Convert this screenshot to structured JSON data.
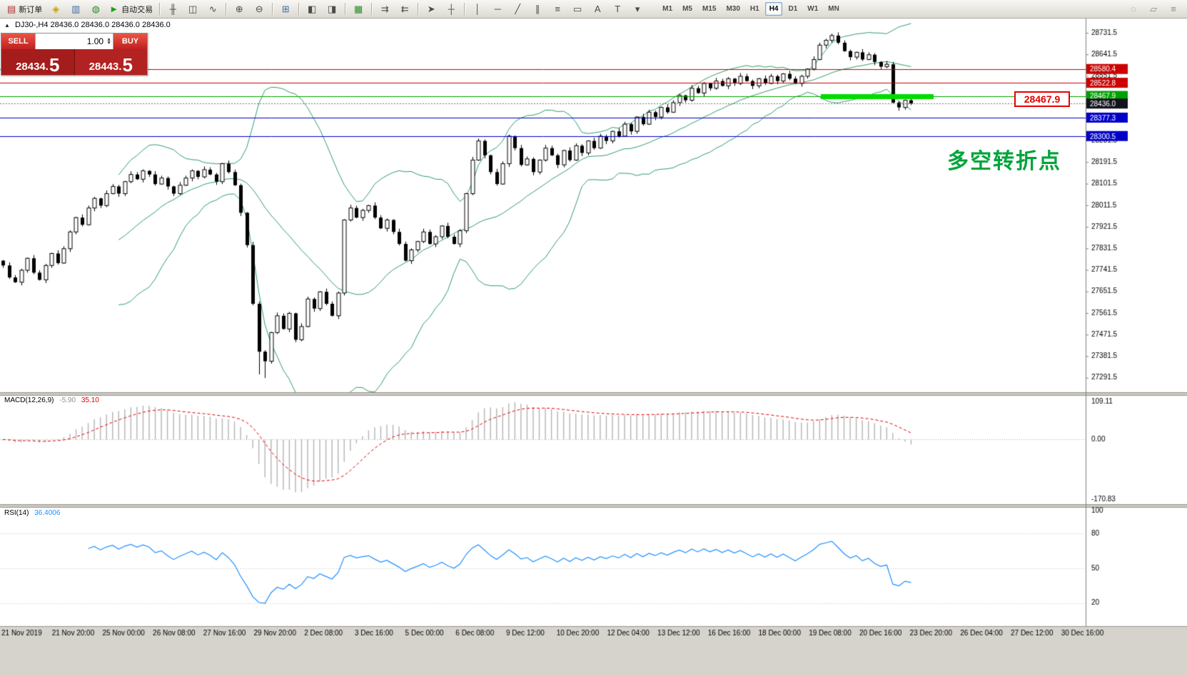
{
  "toolbar": {
    "buttons": [
      {
        "name": "new-order",
        "label": "新订单",
        "glyph": "▤",
        "glyph_color": "#b03030"
      },
      {
        "name": "charts",
        "glyph": "◈",
        "glyph_color": "#c8a400"
      },
      {
        "name": "profiles",
        "glyph": "▥",
        "glyph_color": "#3a6ea5"
      },
      {
        "name": "market-watch",
        "glyph": "◍",
        "glyph_color": "#2a8a2a"
      },
      {
        "name": "auto-trading",
        "label": "自动交易",
        "glyph": "►",
        "glyph_color": "#18a018"
      },
      {
        "name": "sep"
      },
      {
        "name": "bar-chart",
        "glyph": "╫"
      },
      {
        "name": "candlestick-chart",
        "glyph": "◫"
      },
      {
        "name": "line-chart",
        "glyph": "∿"
      },
      {
        "name": "sep"
      },
      {
        "name": "zoom-in",
        "glyph": "⊕"
      },
      {
        "name": "zoom-out",
        "glyph": "⊖"
      },
      {
        "name": "sep"
      },
      {
        "name": "tile-windows",
        "glyph": "⊞",
        "glyph_color": "#3a6ea5"
      },
      {
        "name": "sep"
      },
      {
        "name": "arrange-vertical",
        "glyph": "◧"
      },
      {
        "name": "arrange-horizontal",
        "glyph": "◨"
      },
      {
        "name": "sep"
      },
      {
        "name": "new-chart",
        "glyph": "▦",
        "glyph_color": "#2a8a2a"
      },
      {
        "name": "sep"
      },
      {
        "name": "auto-scroll",
        "glyph": "⇉"
      },
      {
        "name": "chart-shift",
        "glyph": "⇇"
      },
      {
        "name": "sep"
      },
      {
        "name": "cursor",
        "glyph": "➤"
      },
      {
        "name": "crosshair",
        "glyph": "┼"
      },
      {
        "name": "sep"
      },
      {
        "name": "vertical-line",
        "glyph": "│"
      },
      {
        "name": "horizontal-line",
        "glyph": "─"
      },
      {
        "name": "trendline",
        "glyph": "╱"
      },
      {
        "name": "equidistant-channel",
        "glyph": "∥"
      },
      {
        "name": "fibonacci",
        "glyph": "≡"
      },
      {
        "name": "shapes",
        "glyph": "▭"
      },
      {
        "name": "text",
        "glyph": "A"
      },
      {
        "name": "text-label",
        "glyph": "T"
      },
      {
        "name": "arrow-tools",
        "glyph": "▾"
      }
    ],
    "timeframes": [
      "M1",
      "M5",
      "M15",
      "M30",
      "H1",
      "H4",
      "D1",
      "W1",
      "MN"
    ],
    "active_timeframe": "H4",
    "right_buttons": [
      {
        "name": "search",
        "glyph": "◌"
      },
      {
        "name": "edit",
        "glyph": "▱"
      },
      {
        "name": "more",
        "glyph": "≡"
      }
    ]
  },
  "chart": {
    "header": {
      "symbol": "DJ30-,H4",
      "ohlc": "28436.0 28436.0 28436.0 28436.0"
    },
    "annotation": "多空转折点",
    "callout": "28467.9"
  },
  "trade_panel": {
    "sell_label": "SELL",
    "buy_label": "BUY",
    "volume": "1.00",
    "sell_price_main": "28434.",
    "sell_price_big": "5",
    "buy_price_main": "28443.",
    "buy_price_big": "5",
    "sell_price": "28434.5",
    "buy_price": "28443.5"
  },
  "indicators": {
    "macd": {
      "name": "MACD(12,26,9)",
      "main_value": "-5.90",
      "signal_value": "35.10"
    },
    "rsi": {
      "name": "RSI(14)",
      "value": "36.4006"
    }
  },
  "colors": {
    "bollinger": "#2E9E6B",
    "macd_hist": "#b4b4b4",
    "macd_signal": "#e60000",
    "rsi_line": "#1e90ff",
    "hline_red": "#cc0000",
    "hline_blue": "#0000c8",
    "hline_green": "#00a000",
    "segment_green": "#00dc00",
    "bid_label_bg": "#12121c",
    "annotation_green": "#00a43a",
    "callout_red": "#e60000"
  },
  "chart_data": {
    "type": "candlestick",
    "symbol": "DJ30-",
    "timeframe": "H4",
    "price_axis": {
      "top": 28731.5,
      "bottom": 27281.5,
      "ticks": [
        28731.5,
        28641.5,
        28551.5,
        28461.5,
        28371.5,
        28281.5,
        28191.5,
        28101.5,
        28011.5,
        27921.5,
        27831.5,
        27741.5,
        27651.5,
        27561.5,
        27471.5,
        27381.5,
        27291.5
      ]
    },
    "candles": {
      "closes": [
        27760,
        27710,
        27690,
        27740,
        27790,
        27730,
        27700,
        27760,
        27810,
        27770,
        27830,
        27900,
        27960,
        27930,
        28000,
        28040,
        28010,
        28060,
        28090,
        28060,
        28110,
        28140,
        28120,
        28155,
        28140,
        28100,
        28125,
        28090,
        28060,
        28095,
        28125,
        28155,
        28130,
        28160,
        28140,
        28110,
        28185,
        28150,
        28095,
        27980,
        27845,
        27600,
        27400,
        27360,
        27480,
        27550,
        27495,
        27560,
        27450,
        27505,
        27620,
        27580,
        27650,
        27600,
        27550,
        27645,
        27950,
        28000,
        27960,
        27990,
        28010,
        27960,
        27915,
        27950,
        27900,
        27850,
        27780,
        27825,
        27860,
        27900,
        27850,
        27880,
        27925,
        27880,
        27850,
        27905,
        28060,
        28200,
        28280,
        28220,
        28150,
        28100,
        28185,
        28300,
        28250,
        28180,
        28205,
        28150,
        28200,
        28250,
        28220,
        28180,
        28240,
        28200,
        28260,
        28230,
        28280,
        28250,
        28300,
        28280,
        28320,
        28300,
        28350,
        28320,
        28380,
        28350,
        28400,
        28380,
        28420,
        28400,
        28440,
        28470,
        28450,
        28500,
        28480,
        28520,
        28500,
        28530,
        28510,
        28540,
        28520,
        28550,
        28530,
        28510,
        28540,
        28520,
        28550,
        28530,
        28560,
        28540,
        28520,
        28550,
        28580,
        28620,
        28680,
        28700,
        28720,
        28690,
        28655,
        28630,
        28650,
        28620,
        28640,
        28610,
        28590,
        28600,
        28440,
        28420,
        28450,
        28436
      ],
      "low_overrides": {
        "42": 27305,
        "43": 27290
      },
      "high_overrides": {
        "136": 28728
      }
    },
    "bollinger": {
      "period": 20,
      "deviation": 2
    },
    "hlines": [
      {
        "price": 28580.4,
        "color": "#cc0000",
        "label": "28580.4"
      },
      {
        "price": 28522.8,
        "color": "#cc0000",
        "label": "28522.8"
      },
      {
        "price": 28467.9,
        "color": "#00a000",
        "label": "28467.9",
        "bold_segment": [
          1150,
          1308
        ],
        "segment_color": "#00dc00"
      },
      {
        "price": 28377.3,
        "color": "#0000c8",
        "label": "28377.3"
      },
      {
        "price": 28300.5,
        "color": "#0000c8",
        "label": "28300.5"
      }
    ],
    "bid": {
      "price": 28436.0,
      "label": "28436.0",
      "label_bg": "#12121c"
    },
    "macd": {
      "fast": 12,
      "slow": 26,
      "signal": 9,
      "ticks": [
        109.11,
        0,
        -170.83
      ]
    },
    "rsi": {
      "period": 14,
      "ticks": [
        100,
        80,
        50,
        20
      ],
      "levels": [
        80,
        50,
        20
      ]
    },
    "time_labels": [
      "21 Nov 2019",
      "21 Nov 20:00",
      "25 Nov 00:00",
      "26 Nov 08:00",
      "27 Nov 16:00",
      "29 Nov 20:00",
      "2 Dec 08:00",
      "3 Dec 16:00",
      "5 Dec 00:00",
      "6 Dec 08:00",
      "9 Dec 12:00",
      "10 Dec 20:00",
      "12 Dec 04:00",
      "13 Dec 12:00",
      "16 Dec 16:00",
      "18 Dec 00:00",
      "19 Dec 08:00",
      "20 Dec 16:00",
      "23 Dec 20:00",
      "26 Dec 04:00",
      "27 Dec 12:00",
      "30 Dec 16:00"
    ]
  }
}
